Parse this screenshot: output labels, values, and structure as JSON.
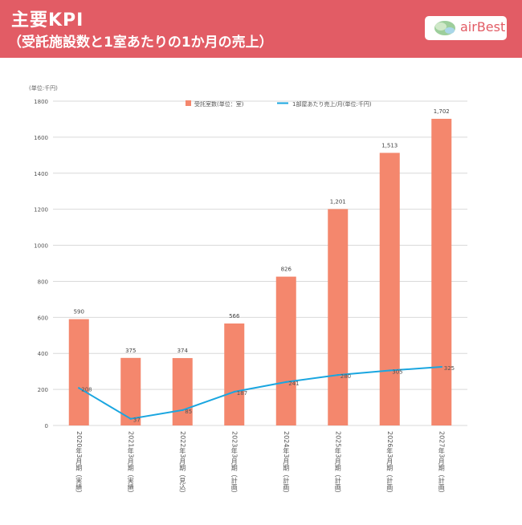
{
  "header": {
    "title": "主要KPI",
    "subtitle": "（受託施設数と1室あたりの1か月の売上）",
    "logo_text": "airBest"
  },
  "colors": {
    "banner": "#e25c65",
    "bar": "#f4876d",
    "line": "#1aa6e0",
    "grid": "#d9d9d9"
  },
  "chart_data": {
    "type": "bar",
    "unit_note": "(単位:千円)",
    "categories": [
      "2020年3月期（実績）",
      "2021年3月期（実績）",
      "2022年3月期（見込）",
      "2023年3月期（計画）",
      "2024年3月期（計画）",
      "2025年3月期（計画）",
      "2026年3月期（計画）",
      "2027年3月期（計画）"
    ],
    "y_ticks": [
      "0",
      "200",
      "400",
      "600",
      "800",
      "1000",
      "1200",
      "1400",
      "1600",
      "1800"
    ],
    "ylim": [
      0,
      1800
    ],
    "grid": true,
    "legend_position": "top",
    "series": [
      {
        "name": "受託室数(単位：室)",
        "kind": "bar",
        "values": [
          590,
          375,
          374,
          566,
          826,
          1201,
          1513,
          1702
        ],
        "labels": [
          "590",
          "375",
          "374",
          "566",
          "826",
          "1,201",
          "1,513",
          "1,702"
        ]
      },
      {
        "name": "1部屋あたり売上/月(単位:千円)",
        "kind": "line",
        "values": [
          208,
          37,
          85,
          187,
          241,
          280,
          305,
          325
        ],
        "labels": [
          "208",
          "37",
          "85",
          "187",
          "241",
          "280",
          "305",
          "325"
        ]
      }
    ]
  }
}
